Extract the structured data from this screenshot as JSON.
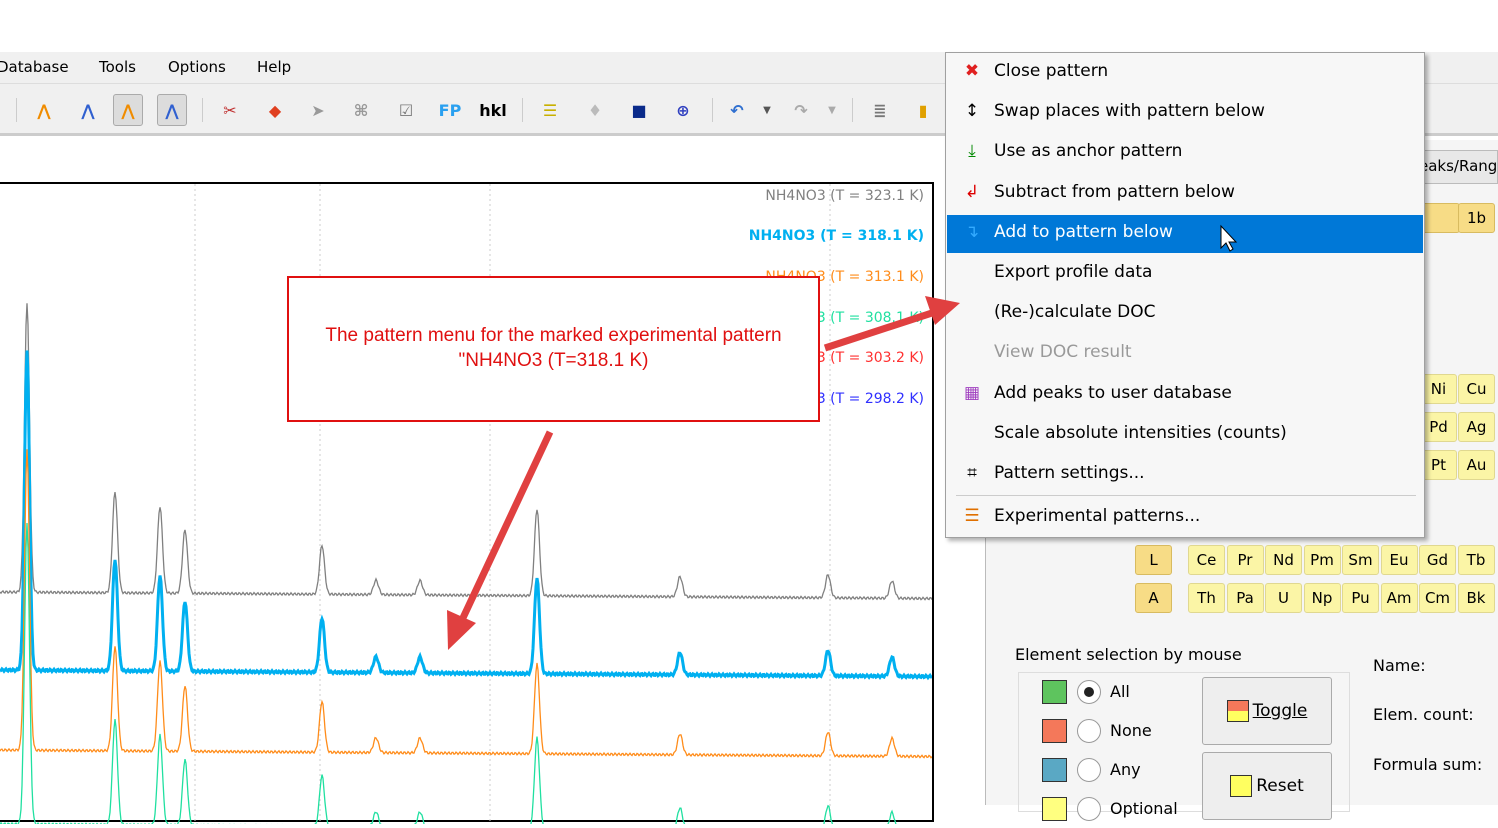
{
  "menubar": {
    "items": [
      "Database",
      "Tools",
      "Options",
      "Help"
    ]
  },
  "toolbar": {
    "fp": "FP",
    "hkl": "hkl"
  },
  "plot": {
    "legend": [
      {
        "label": "NH4NO3 (T = 323.1 K)",
        "color": "#808080"
      },
      {
        "label": "NH4NO3 (T = 318.1 K)",
        "color": "#00b0f0"
      },
      {
        "label": "NH4NO3 (T = 313.1 K)",
        "color": "#ff8c1a"
      },
      {
        "label": "NH4NO3 (T = 308.1 K)",
        "color": "#20e0a0"
      },
      {
        "label": "NH4NO3 (T = 303.2 K)",
        "color": "#ff3030"
      },
      {
        "label": "NH4NO3 (T = 298.2 K)",
        "color": "#3030ff"
      }
    ]
  },
  "callout": {
    "text": "The pattern menu for the marked experimental pattern \"NH4NO3 (T=318.1 K)"
  },
  "context_menu": {
    "items": [
      {
        "label": "Close pattern",
        "icon": "red-x-icon"
      },
      {
        "label": "Swap places with pattern below",
        "icon": "swap-arrows-icon"
      },
      {
        "label": "Use as anchor pattern",
        "icon": "anchor-arrow-icon"
      },
      {
        "label": "Subtract from pattern below",
        "icon": "subtract-icon"
      },
      {
        "label": "Add to pattern below",
        "icon": "add-icon",
        "highlighted": true
      },
      {
        "label": "Export profile data"
      },
      {
        "label": "(Re-)calculate DOC"
      },
      {
        "label": "View DOC result",
        "disabled": true
      },
      {
        "label": "Add peaks to user database",
        "icon": "database-add-icon"
      },
      {
        "label": "Scale absolute intensities (counts)"
      },
      {
        "label": "Pattern settings...",
        "icon": "settings-icon"
      },
      {
        "label": "Experimental patterns...",
        "icon": "list-icon"
      }
    ]
  },
  "right_panel": {
    "tab": "eaks/Rang",
    "elements_top": [
      "1b"
    ],
    "elements_col": [
      [
        "Ni",
        "Cu"
      ],
      [
        "Pd",
        "Ag"
      ],
      [
        "Pt",
        "Au"
      ]
    ],
    "series_labels": [
      "L",
      "A"
    ],
    "lanthanides": [
      "Ce",
      "Pr",
      "Nd",
      "Pm",
      "Sm",
      "Eu",
      "Gd",
      "Tb"
    ],
    "actinides": [
      "Th",
      "Pa",
      "U",
      "Np",
      "Pu",
      "Am",
      "Cm",
      "Bk"
    ],
    "selection_title": "Element selection by mouse",
    "options": [
      {
        "label": "All",
        "color": "#5ec45e",
        "selected": true
      },
      {
        "label": "None",
        "color": "#f4785a"
      },
      {
        "label": "Any",
        "color": "#5aa8c4"
      },
      {
        "label": "Optional",
        "color": "#ffff80"
      }
    ],
    "toggle": "Toggle",
    "reset": "Reset",
    "name_label": "Name:",
    "elem_count_label": "Elem. count:",
    "formula_label": "Formula sum:"
  }
}
